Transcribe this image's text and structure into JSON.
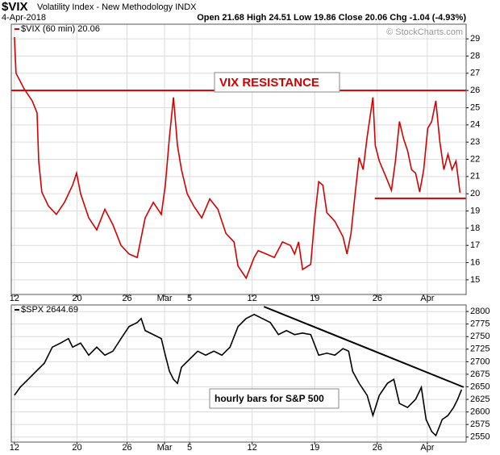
{
  "chart_data": [
    {
      "type": "line",
      "title": "$VIX",
      "subtitle": "Volatility Index - New Methodology  INDX",
      "date": "4-Apr-2018",
      "quote": "Open 21.68  High 24.51  Low 19.86  Close 20.06  Chg -1.04 (-4.93%)",
      "watermark": "© StockCharts.com",
      "xlim": [
        -0.25,
        36.1
      ],
      "xticks": [
        {
          "value": 0,
          "label": "12"
        },
        {
          "value": 5,
          "label": "20"
        },
        {
          "value": 9,
          "label": "26"
        },
        {
          "value": 12,
          "label": "Mar"
        },
        {
          "value": 14,
          "label": "5"
        },
        {
          "value": 19,
          "label": "12"
        },
        {
          "value": 24,
          "label": "19"
        },
        {
          "value": 29,
          "label": "26"
        },
        {
          "value": 33,
          "label": "Apr"
        }
      ],
      "ylim": [
        14.15,
        29.85
      ],
      "yticks": [
        15,
        16,
        17,
        18,
        19,
        20,
        21,
        22,
        23,
        24,
        25,
        26,
        27,
        28,
        29
      ],
      "grid": true,
      "series": [
        {
          "name": "$VIX (60 min) 20.06",
          "color": "#d40000",
          "x": [
            0,
            0.13,
            0.77,
            1.42,
            1.81,
            1.94,
            2.19,
            2.71,
            3.35,
            4.0,
            4.65,
            4.97,
            5.29,
            5.94,
            6.58,
            7.23,
            7.87,
            8.52,
            9.16,
            9.81,
            10.45,
            11.1,
            11.74,
            12.06,
            12.39,
            12.71,
            13.03,
            13.35,
            13.81,
            14.32,
            14.97,
            15.61,
            16.26,
            16.9,
            17.55,
            17.87,
            18.52,
            19.16,
            19.48,
            20.13,
            20.77,
            21.42,
            22.06,
            22.39,
            22.71,
            23.03,
            23.68,
            24.0,
            24.32,
            24.65,
            24.97,
            25.61,
            26.26,
            26.58,
            26.9,
            27.23,
            27.55,
            27.87,
            28.19,
            28.65,
            28.84,
            29.16,
            29.68,
            30.13,
            30.45,
            30.77,
            31.1,
            31.42,
            31.74,
            32.06,
            32.39,
            32.71,
            33.03,
            33.35,
            33.68,
            34.0,
            34.32,
            34.65,
            34.97,
            35.29,
            35.61
          ],
          "values": [
            29.1,
            27.0,
            26.1,
            25.4,
            24.7,
            21.9,
            20.1,
            19.3,
            18.8,
            19.5,
            20.5,
            21.2,
            20.0,
            18.6,
            17.9,
            19.1,
            18.2,
            17.0,
            16.5,
            16.3,
            18.6,
            19.5,
            18.8,
            20.5,
            23.3,
            25.6,
            22.8,
            21.4,
            20.0,
            19.3,
            18.6,
            19.7,
            19.1,
            17.7,
            17.2,
            15.8,
            15.1,
            16.3,
            16.7,
            16.5,
            16.3,
            17.2,
            17.0,
            16.5,
            17.2,
            15.6,
            15.9,
            18.6,
            20.7,
            20.5,
            18.9,
            18.4,
            17.5,
            16.5,
            17.7,
            20.0,
            22.1,
            21.4,
            23.3,
            25.6,
            22.8,
            21.9,
            21.0,
            20.2,
            21.9,
            24.2,
            23.2,
            22.5,
            21.4,
            21.2,
            20.1,
            21.4,
            23.8,
            24.2,
            25.4,
            23.0,
            21.4,
            22.3,
            21.4,
            21.9,
            20.06
          ]
        }
      ],
      "lines": [
        {
          "x": [
            -0.25,
            36.1
          ],
          "y": [
            26,
            26
          ],
          "color": "#d40000"
        },
        {
          "x": [
            28.8,
            36.1
          ],
          "y": [
            19.73,
            19.73
          ],
          "color": "#d40000"
        }
      ],
      "annotations": [
        {
          "text": "VIX RESISTANCE",
          "color": "#d40000"
        }
      ]
    },
    {
      "type": "line",
      "xlim": [
        -0.25,
        36.1
      ],
      "xticks": [
        {
          "value": 0,
          "label": "12"
        },
        {
          "value": 5,
          "label": "20"
        },
        {
          "value": 9,
          "label": "26"
        },
        {
          "value": 12,
          "label": "Mar"
        },
        {
          "value": 14,
          "label": "5"
        },
        {
          "value": 19,
          "label": "12"
        },
        {
          "value": 24,
          "label": "19"
        },
        {
          "value": 29,
          "label": "26"
        },
        {
          "value": 33,
          "label": "Apr"
        }
      ],
      "ylim": [
        2540,
        2813
      ],
      "yticks": [
        2550,
        2575,
        2600,
        2625,
        2650,
        2675,
        2700,
        2725,
        2750,
        2775,
        2800
      ],
      "grid": true,
      "series": [
        {
          "name": "$SPX 2644.69",
          "color": "#000000",
          "x": [
            0,
            0.45,
            1.1,
            1.74,
            2.39,
            3.03,
            3.68,
            4.32,
            4.65,
            5.29,
            5.94,
            6.58,
            7.23,
            7.87,
            8.52,
            9.16,
            9.81,
            10.13,
            10.45,
            11.1,
            11.74,
            12.06,
            12.39,
            12.71,
            13.03,
            13.35,
            14.0,
            14.65,
            15.29,
            15.94,
            16.58,
            17.23,
            17.87,
            18.52,
            19.16,
            19.81,
            20.45,
            21.1,
            21.74,
            22.39,
            23.03,
            23.68,
            24.32,
            24.97,
            25.61,
            26.26,
            26.71,
            27.03,
            27.55,
            28.19,
            28.65,
            29.16,
            29.81,
            30.32,
            30.77,
            31.42,
            32.06,
            32.52,
            32.9,
            33.35,
            33.68,
            34.19,
            34.65,
            35.1,
            35.42,
            35.74
          ],
          "values": [
            2633,
            2649,
            2665,
            2681,
            2697,
            2729,
            2737,
            2746,
            2729,
            2737,
            2713,
            2729,
            2713,
            2721,
            2746,
            2770,
            2778,
            2786,
            2762,
            2754,
            2746,
            2713,
            2681,
            2665,
            2657,
            2689,
            2705,
            2721,
            2713,
            2721,
            2713,
            2729,
            2770,
            2786,
            2794,
            2786,
            2778,
            2754,
            2762,
            2754,
            2757,
            2754,
            2713,
            2717,
            2713,
            2726,
            2721,
            2681,
            2657,
            2633,
            2593,
            2633,
            2657,
            2665,
            2617,
            2609,
            2625,
            2649,
            2585,
            2561,
            2553,
            2585,
            2593,
            2609,
            2625,
            2644.69
          ]
        }
      ],
      "lines": [
        {
          "x": [
            19.94,
            35.9
          ],
          "y": [
            2809.6,
            2649.4
          ],
          "color": "#000000"
        }
      ],
      "annotations": [
        {
          "text": "hourly bars for S&P 500",
          "color": "#000000"
        }
      ]
    }
  ]
}
